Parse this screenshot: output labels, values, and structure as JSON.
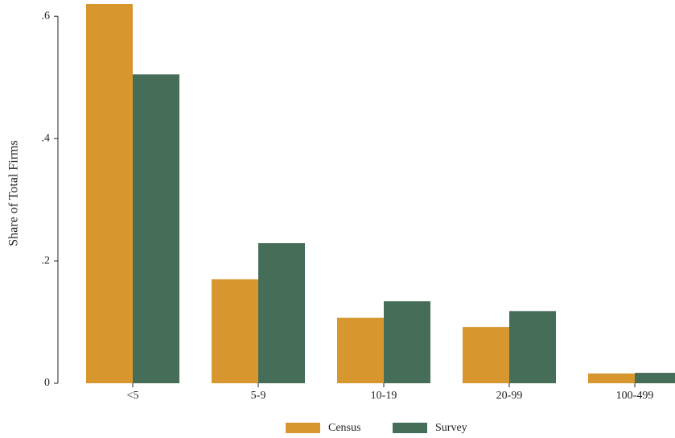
{
  "chart_data": {
    "type": "bar",
    "y_label": "Share of Total Firms",
    "categories": [
      "<5",
      "5-9",
      "10-19",
      "20-99",
      "100-499"
    ],
    "series": [
      {
        "name": "Census",
        "color": "#d8962f",
        "values": [
          0.62,
          0.17,
          0.107,
          0.092,
          0.016
        ]
      },
      {
        "name": "Survey",
        "color": "#456d58",
        "values": [
          0.505,
          0.229,
          0.134,
          0.118,
          0.017
        ]
      }
    ],
    "ylim": [
      0,
      0.62
    ],
    "yticks": [
      0,
      {
        "value": 0.2,
        "label": ".2"
      },
      {
        "value": 0.4,
        "label": ".4"
      },
      {
        "value": 0.6,
        "label": ".6"
      }
    ]
  }
}
